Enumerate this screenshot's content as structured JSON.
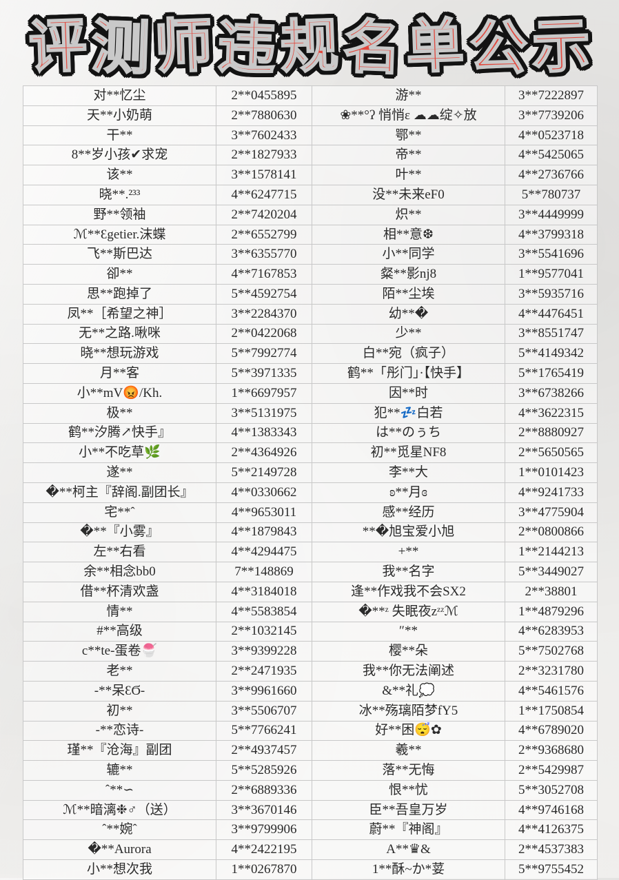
{
  "title": "评测师违规名单公示",
  "colors": {
    "title_fill": "#e2473c",
    "title_outline": "#131313",
    "title_inner_stroke": "#c9c9c9",
    "table_border": "#c8c8c8",
    "text": "#2b2b2b",
    "background": "#f1f0ee"
  },
  "table": {
    "rows": [
      [
        "对**忆尘",
        "2**0455895",
        "游**",
        "3**7222897"
      ],
      [
        "天**小奶萌",
        "2**7880630",
        "❀**°ʔ 悄悄ε ☁☁绽✧放",
        "3**7739206"
      ],
      [
        "干**",
        "3**7602433",
        "鄂**",
        "4**0523718"
      ],
      [
        "8**岁小孩✔求宠",
        "2**1827933",
        "帝**",
        "4**5425065"
      ],
      [
        "该**",
        "3**1578141",
        "叶**",
        "4**2736766"
      ],
      [
        "晓**.²³³",
        "4**6247715",
        "没**未来eF0",
        "5**780737"
      ],
      [
        "野**领袖",
        "2**7420204",
        "炽**",
        "3**4449999"
      ],
      [
        "ℳ**Ɛgetier.沫蝶",
        "2**6552799",
        "相**意❆",
        "4**3799318"
      ],
      [
        "飞**斯巴达",
        "3**6355770",
        "小**同学",
        "3**5541696"
      ],
      [
        "卻**",
        "4**7167853",
        "粲**影nj8",
        "1**9577041"
      ],
      [
        "思**跑掉了",
        "5**4592754",
        "陌**尘埃",
        "3**5935716"
      ],
      [
        "凤**［希望之神］",
        "3**2284370",
        "幼**�",
        "4**4476451"
      ],
      [
        "无**之路.啾咪",
        "2**0422068",
        "少**",
        "3**8551747"
      ],
      [
        "晓**想玩游戏",
        "5**7992774",
        "白**宛（疯子）",
        "5**4149342"
      ],
      [
        "月**客",
        "5**3971335",
        "鹤**「彤门」·【快手】",
        "5**1765419"
      ],
      [
        "小**mV😡/Kh.",
        "1**6697957",
        "因**时",
        "3**6738266"
      ],
      [
        "极**",
        "3**5131975",
        "犯**💤白若",
        "4**3622315"
      ],
      [
        "鹤**汐腾↗快手』",
        "4**1383343",
        "は**のぅち",
        "2**8880927"
      ],
      [
        "小**不吃草🌿",
        "2**4364926",
        "初**觅星NF8",
        "2**5650565"
      ],
      [
        "遂**",
        "5**2149728",
        "李**大",
        "1**0101423"
      ],
      [
        "�**柯主『辞阁.副团长』",
        "4**0330662",
        "ʚ**月ɞ",
        "4**9241733"
      ],
      [
        "宅**ˆ",
        "4**9653011",
        "感**经历",
        "3**4775904"
      ],
      [
        "�**『小雾』",
        "4**1879843",
        "**�旭宝爱小旭",
        "2**0800866"
      ],
      [
        "左**右看",
        "4**4294475",
        "+**",
        "1**2144213"
      ],
      [
        "余**相念bb0",
        "7**148869",
        "我**名字",
        "5**3449027"
      ],
      [
        "借**杯清欢盏",
        "4**3184018",
        "逢**作戏我不会SX2",
        "2**38801"
      ],
      [
        "情**",
        "4**5583854",
        "�**ᶻ 失眠夜zᶻᶻℳ",
        "1**4879296"
      ],
      [
        "#**高级",
        "2**1032145",
        "″**",
        "4**6283953"
      ],
      [
        "c**te-蛋卷🍧",
        "3**9399228",
        "樱**朵",
        "5**7502768"
      ],
      [
        "老**",
        "2**2471935",
        "我**你无法阐述",
        "2**3231780"
      ],
      [
        "-**呆ƐϬ-",
        "3**9961660",
        "&**礼💭",
        "4**5461576"
      ],
      [
        "初**",
        "3**5506707",
        "冰**殇璃陌梦fY5",
        "1**1750854"
      ],
      [
        "-**恋诗-",
        "5**7766241",
        "好**困😴✿",
        "4**6789020"
      ],
      [
        "瑾**『沧海』副团",
        "2**4937457",
        "羲**",
        "2**9368680"
      ],
      [
        "辘**",
        "5**5285926",
        "落**无悔",
        "2**5429987"
      ],
      [
        "ˆ**∽",
        "2**6889336",
        "恨**忧",
        "5**3052708"
      ],
      [
        "ℳ**暗漓❉♂（送）",
        "3**3670146",
        "臣**吾皇万岁",
        "4**9746168"
      ],
      [
        "ˆ**婉ˆ",
        "3**9799906",
        "蔚**『神阁』",
        "4**4126375"
      ],
      [
        "�**Aurora",
        "4**2422195",
        "A**♛&",
        "2**4537383"
      ],
      [
        "小**想次我",
        "1**0267870",
        "1**酥~か*荽",
        "5**9755452"
      ]
    ]
  }
}
